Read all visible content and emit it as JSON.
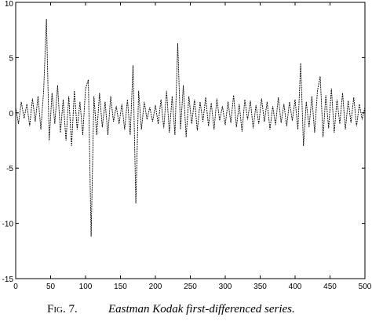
{
  "chart_data": {
    "type": "line",
    "label": "Fig. 7.",
    "title": "Eastman Kodak first-differenced series.",
    "color": "#000000",
    "xlim": [
      0,
      500
    ],
    "xticks": [
      0,
      50,
      100,
      150,
      200,
      250,
      300,
      350,
      400,
      450,
      500
    ],
    "ylim": [
      -15,
      10
    ],
    "yticks": [
      -15,
      -10,
      -5,
      0,
      5,
      10
    ],
    "x": [
      0,
      4,
      8,
      12,
      16,
      20,
      24,
      28,
      32,
      36,
      40,
      44,
      48,
      52,
      56,
      60,
      64,
      68,
      72,
      76,
      80,
      84,
      88,
      92,
      96,
      100,
      104,
      108,
      112,
      116,
      120,
      124,
      128,
      132,
      136,
      140,
      144,
      148,
      152,
      156,
      160,
      164,
      168,
      172,
      176,
      180,
      184,
      188,
      192,
      196,
      200,
      204,
      208,
      212,
      216,
      220,
      224,
      228,
      232,
      236,
      240,
      244,
      248,
      252,
      256,
      260,
      264,
      268,
      272,
      276,
      280,
      284,
      288,
      292,
      296,
      300,
      304,
      308,
      312,
      316,
      320,
      324,
      328,
      332,
      336,
      340,
      344,
      348,
      352,
      356,
      360,
      364,
      368,
      372,
      376,
      380,
      384,
      388,
      392,
      396,
      400,
      404,
      408,
      412,
      416,
      420,
      424,
      428,
      432,
      436,
      440,
      444,
      448,
      452,
      456,
      460,
      464,
      468,
      472,
      476,
      480,
      484,
      488,
      492,
      496,
      500
    ],
    "values": [
      0.5,
      -1,
      1,
      -0.5,
      0.8,
      -1.2,
      1.3,
      -0.8,
      1.5,
      -1.5,
      2,
      8.5,
      -2.5,
      1.8,
      -1,
      2.5,
      -1.8,
      1.2,
      -2.5,
      1.5,
      -3,
      2,
      -1.5,
      1,
      -2,
      2.2,
      3,
      -11.2,
      1.5,
      -2,
      1.8,
      -1.3,
      1,
      -2,
      1.5,
      -0.8,
      0.6,
      -1,
      0.8,
      -1.5,
      1.2,
      -2,
      4.3,
      -8.2,
      2,
      -1.5,
      1,
      -0.6,
      0.5,
      -0.8,
      0.7,
      -1,
      1.2,
      -1.4,
      2,
      -1.8,
      1.5,
      -2,
      6.3,
      -1.5,
      2.5,
      -2.2,
      1.5,
      -1,
      1.2,
      -1.6,
      1,
      -0.8,
      1.4,
      -1.2,
      0.9,
      -1.5,
      1.3,
      -0.7,
      0.6,
      -1.1,
      1,
      -0.9,
      1.6,
      -1.3,
      0.8,
      -1.7,
      1.2,
      -0.6,
      1.1,
      -1.4,
      0.7,
      -1,
      1.3,
      -0.8,
      1,
      -1.5,
      0.6,
      -1.1,
      1.4,
      -0.9,
      0.8,
      -1.2,
      1,
      -0.7,
      1.2,
      -1.5,
      4.5,
      -3,
      1,
      -1.3,
      1.5,
      -1.8,
      2,
      3.3,
      -2.2,
      1.6,
      -1.4,
      2.2,
      -1.8,
      1.2,
      -1,
      1.8,
      -1.5,
      1.1,
      -0.9,
      1.4,
      -1.2,
      0.8,
      -0.6,
      0.5
    ]
  }
}
